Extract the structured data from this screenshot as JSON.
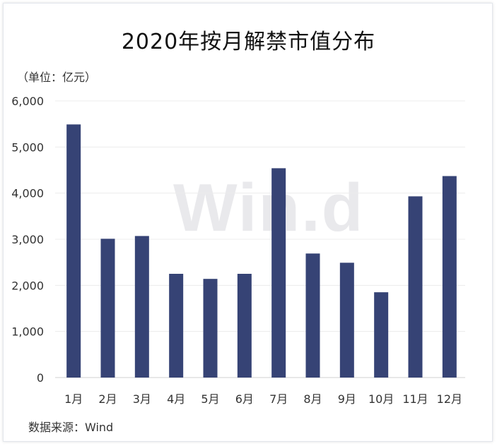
{
  "chart_data": {
    "type": "bar",
    "title": "2020年按月解禁市值分布",
    "unit_label": "（单位：亿元）",
    "source": "数据来源：Wind",
    "watermark": "Win.d",
    "categories": [
      "1月",
      "2月",
      "3月",
      "4月",
      "5月",
      "6月",
      "7月",
      "8月",
      "9月",
      "10月",
      "11月",
      "12月"
    ],
    "values": [
      5490,
      3010,
      3070,
      2250,
      2140,
      2250,
      4540,
      2690,
      2490,
      1850,
      3930,
      4370
    ],
    "ylim": [
      0,
      6000
    ],
    "yticks": [
      0,
      1000,
      2000,
      3000,
      4000,
      5000,
      6000
    ],
    "ytick_labels": [
      "0",
      "1,000",
      "2,000",
      "3,000",
      "4,000",
      "5,000",
      "6,000"
    ],
    "grid": true,
    "bar_color": "#364375"
  }
}
